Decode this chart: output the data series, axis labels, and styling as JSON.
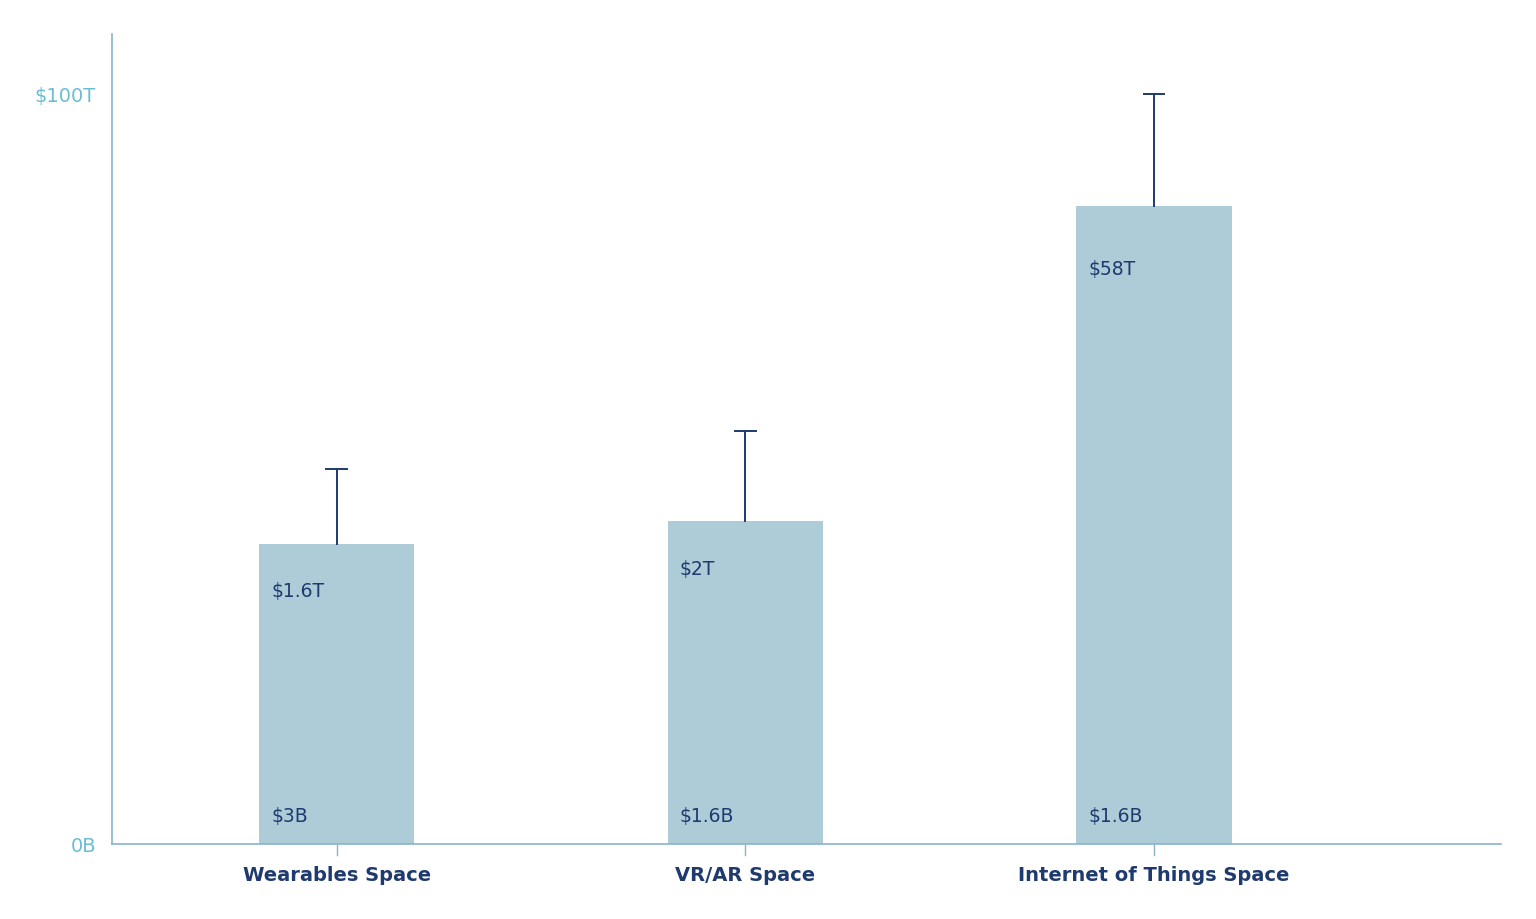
{
  "categories": [
    "Wearables Space",
    "VR/AR Space",
    "Internet of Things Space"
  ],
  "bar_tops_display": [
    40,
    43,
    85
  ],
  "bar_bottoms_display": [
    0,
    0,
    0
  ],
  "error_tops_display": [
    50,
    55,
    100
  ],
  "top_labels": [
    "$1.6T",
    "$2T",
    "$58T"
  ],
  "bottom_labels": [
    "$3B",
    "$1.6B",
    "$1.6B"
  ],
  "bar_color": "#aeccd8",
  "error_color": "#1e3a6e",
  "axis_color": "#6bbdd4",
  "xlabel_color": "#1e3a6e",
  "background_color": "#ffffff",
  "ylim": [
    0,
    108
  ],
  "yticks": [
    0,
    100
  ],
  "ytick_labels": [
    "0B",
    "$100T"
  ],
  "bar_width": 0.38,
  "x_positions": [
    1,
    2,
    3
  ],
  "xlim": [
    0.45,
    3.85
  ],
  "figsize": [
    15.36,
    9.2
  ],
  "dpi": 100,
  "spine_color": "#8ab4c8"
}
